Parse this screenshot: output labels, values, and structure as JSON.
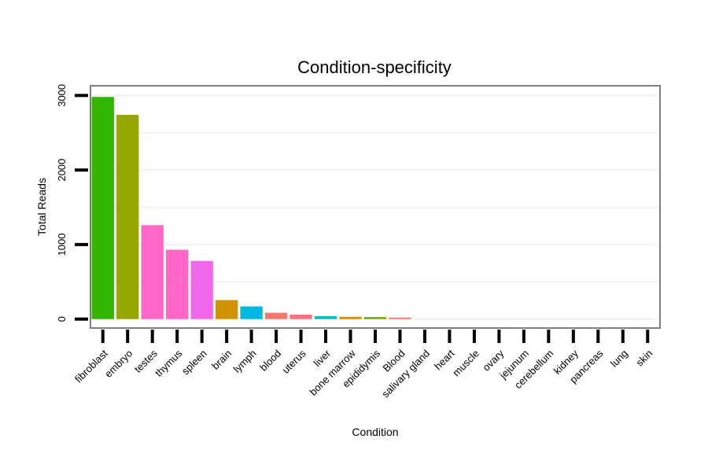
{
  "chart_data": {
    "type": "bar",
    "title": "Condition-specificity",
    "xlabel": "Condition",
    "ylabel": "Total Reads",
    "ylim": [
      -120,
      3130
    ],
    "yticks": [
      0,
      1000,
      2000,
      3000
    ],
    "categories": [
      "fibroblast",
      "embryo",
      "testes",
      "thymus",
      "spleen",
      "brain",
      "lymph",
      "blood",
      "uterus",
      "liver",
      "bone marrow",
      "epididymis",
      "Blood",
      "salivary gland",
      "heart",
      "muscle",
      "ovary",
      "jejunum",
      "cerebellum",
      "kidney",
      "pancreas",
      "lung",
      "skin"
    ],
    "values": [
      2980,
      2740,
      1260,
      930,
      780,
      255,
      170,
      85,
      60,
      40,
      30,
      28,
      20,
      0,
      0,
      0,
      0,
      0,
      0,
      0,
      0,
      0,
      0
    ],
    "colors": [
      "#31B500",
      "#96A800",
      "#FF66C8",
      "#FF66C8",
      "#EF67EB",
      "#CF9400",
      "#00B9E3",
      "#F8766D",
      "#FC717F",
      "#00BFC4",
      "#DB8E00",
      "#7CAE00",
      "#F8766D",
      "#FF6A98",
      "#00C08B",
      "#00BD5C",
      "#00BB4E",
      "#39B600",
      "#00ABFD",
      "#619CFF",
      "#B983FF",
      "#DB72FB",
      "#FF61C3"
    ],
    "grid": true,
    "legend": "none"
  }
}
